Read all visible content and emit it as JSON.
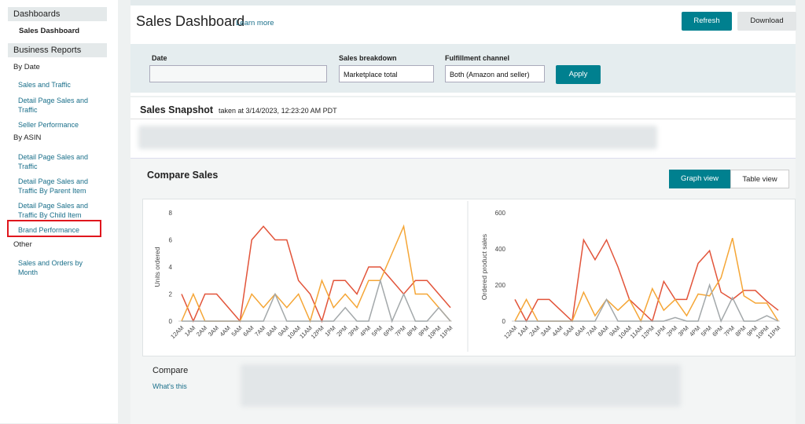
{
  "sidebar": {
    "dashboards_title": "Dashboards",
    "dashboards_item": "Sales Dashboard",
    "reports_title": "Business Reports",
    "groups": [
      {
        "title": "By Date",
        "links": [
          "Sales and Traffic",
          "Detail Page Sales and Traffic",
          "Seller Performance"
        ]
      },
      {
        "title": "By ASIN",
        "links": [
          "Detail Page Sales and Traffic",
          "Detail Page Sales and Traffic By Parent Item",
          "Detail Page Sales and Traffic By Child Item",
          "Brand Performance"
        ]
      },
      {
        "title": "Other",
        "links": [
          "Sales and Orders by Month"
        ]
      }
    ]
  },
  "header": {
    "title": "Sales Dashboard",
    "link": "Learn more",
    "buttons": [
      "Refresh",
      "Download"
    ]
  },
  "filters": {
    "date_label": "Date",
    "breakdown_label": "Sales breakdown",
    "breakdown_value": "Marketplace total",
    "channel_label": "Fulfillment channel",
    "channel_value": "Both (Amazon and seller)",
    "apply": "Apply"
  },
  "snapshot": {
    "title": "Sales Snapshot",
    "taken": "taken at 3/14/2023, 12:23:20 AM PDT"
  },
  "compare": {
    "title": "Compare Sales",
    "views": [
      "Graph view",
      "Table view"
    ],
    "footer_title": "Compare",
    "footer_link": "What's this"
  },
  "chart_data": [
    {
      "type": "line",
      "y_label": "Units ordered",
      "categories": [
        "12AM",
        "1AM",
        "2AM",
        "3AM",
        "4AM",
        "5AM",
        "6AM",
        "7AM",
        "8AM",
        "9AM",
        "10AM",
        "11AM",
        "12PM",
        "1PM",
        "2PM",
        "3PM",
        "4PM",
        "5PM",
        "6PM",
        "7PM",
        "8PM",
        "9PM",
        "10PM",
        "11PM"
      ],
      "ylim": [
        0,
        8
      ],
      "yticks": [
        0,
        2,
        4,
        6,
        8
      ],
      "grid": false,
      "series": [
        {
          "color": "#e2543a",
          "values": [
            2,
            0,
            2,
            2,
            1,
            0,
            6,
            7,
            6,
            6,
            3,
            2,
            0,
            3,
            3,
            2,
            4,
            4,
            3,
            2,
            3,
            3,
            2,
            1
          ]
        },
        {
          "color": "#f5a636",
          "values": [
            0,
            2,
            0,
            0,
            0,
            0,
            2,
            1,
            2,
            1,
            2,
            0,
            3,
            1,
            2,
            1,
            3,
            3,
            5,
            7,
            2,
            2,
            1,
            0
          ]
        },
        {
          "color": "#a3a8aa",
          "values": [
            0,
            0,
            0,
            0,
            0,
            0,
            0,
            0,
            2,
            0,
            0,
            0,
            0,
            0,
            1,
            0,
            0,
            3,
            0,
            2,
            0,
            0,
            1,
            0
          ]
        }
      ]
    },
    {
      "type": "line",
      "y_label": "Ordered product sales",
      "categories": [
        "12AM",
        "1AM",
        "2AM",
        "3AM",
        "4AM",
        "5AM",
        "6AM",
        "7AM",
        "8AM",
        "9AM",
        "10AM",
        "11AM",
        "12PM",
        "1PM",
        "2PM",
        "3PM",
        "4PM",
        "5PM",
        "6PM",
        "7PM",
        "8PM",
        "9PM",
        "10PM",
        "11PM"
      ],
      "ylim": [
        0,
        600
      ],
      "yticks": [
        0,
        200,
        400,
        600
      ],
      "grid": false,
      "series": [
        {
          "color": "#e2543a",
          "values": [
            120,
            0,
            120,
            120,
            60,
            0,
            450,
            340,
            450,
            300,
            120,
            60,
            0,
            220,
            120,
            120,
            320,
            390,
            160,
            120,
            170,
            170,
            110,
            60
          ]
        },
        {
          "color": "#f5a636",
          "values": [
            0,
            120,
            0,
            0,
            0,
            0,
            160,
            30,
            120,
            60,
            120,
            0,
            180,
            60,
            120,
            30,
            150,
            140,
            240,
            460,
            140,
            100,
            100,
            0
          ]
        },
        {
          "color": "#a3a8aa",
          "values": [
            0,
            0,
            0,
            0,
            0,
            0,
            0,
            0,
            120,
            0,
            0,
            0,
            0,
            0,
            20,
            0,
            0,
            200,
            0,
            130,
            0,
            0,
            30,
            0
          ]
        }
      ]
    }
  ]
}
